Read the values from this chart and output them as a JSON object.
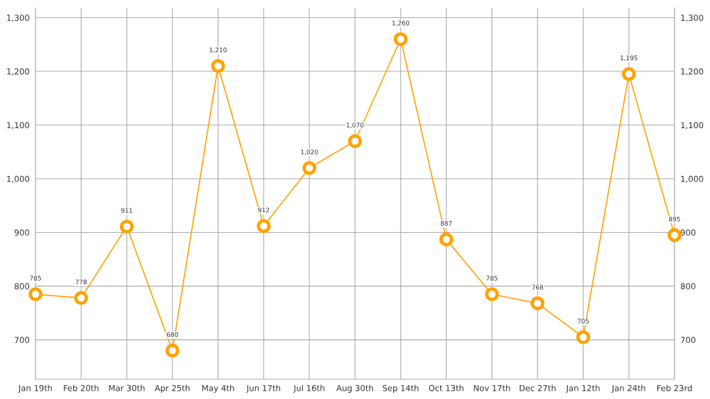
{
  "chart_data": {
    "type": "line",
    "categories": [
      "Jan 19th",
      "Feb 20th",
      "Mar 30th",
      "Apr 25th",
      "May 4th",
      "Jun 17th",
      "Jul 16th",
      "Aug 30th",
      "Sep 14th",
      "Oct 13th",
      "Nov 17th",
      "Dec 27th",
      "Jan 12th",
      "Jan 24th",
      "Feb 23rd"
    ],
    "series": [
      {
        "color": "#ffa200",
        "values": [
          785,
          778,
          911,
          680,
          1210,
          912,
          1020,
          1070,
          1260,
          887,
          785,
          768,
          705,
          1195,
          895
        ],
        "value_labels": [
          "785",
          "778",
          "911",
          "680",
          "1,210",
          "912",
          "1,020",
          "1,070",
          "1,260",
          "887",
          "785",
          "768",
          "705",
          "1,195",
          "895"
        ]
      }
    ],
    "ylim": [
      627,
      1318
    ],
    "yticks": [
      {
        "value": 700,
        "label": "700"
      },
      {
        "value": 800,
        "label": "800"
      },
      {
        "value": 900,
        "label": "900"
      },
      {
        "value": 1000,
        "label": "1,000"
      },
      {
        "value": 1100,
        "label": "1,100"
      },
      {
        "value": 1200,
        "label": "1,200"
      },
      {
        "value": 1300,
        "label": "1,300"
      }
    ],
    "y2lim": [
      627,
      1318
    ],
    "y2ticks": [
      {
        "value": 700,
        "label": "700"
      },
      {
        "value": 800,
        "label": "800"
      },
      {
        "value": 900,
        "label": "900"
      },
      {
        "value": 1000,
        "label": "1,000"
      },
      {
        "value": 1100,
        "label": "1,100"
      },
      {
        "value": 1200,
        "label": "1,200"
      },
      {
        "value": 1300,
        "label": "1,300"
      }
    ],
    "grid": true,
    "marker": "circle",
    "line_style": "solid"
  }
}
